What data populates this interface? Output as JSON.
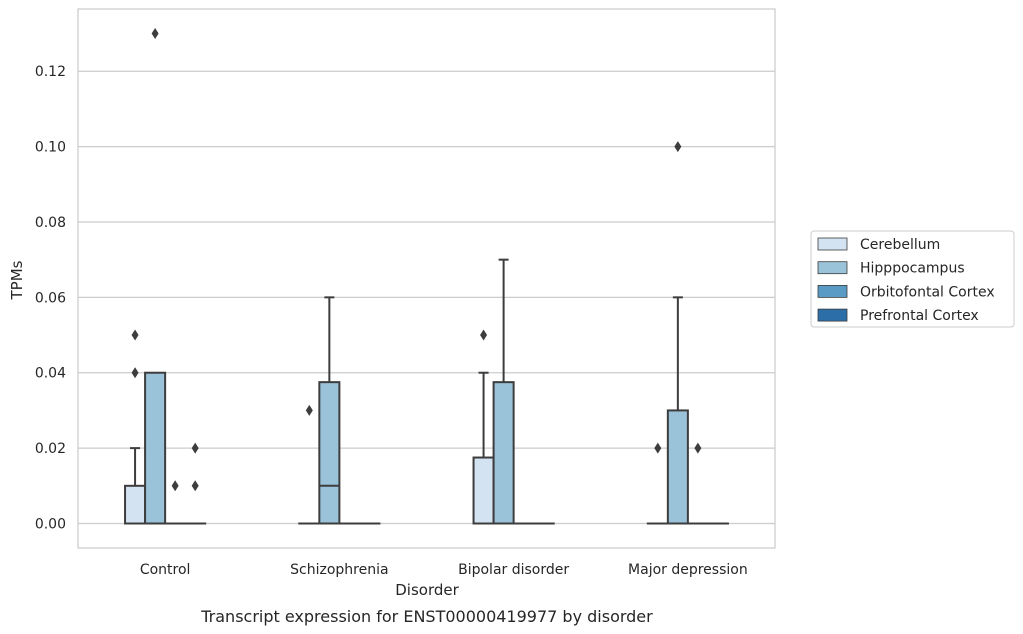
{
  "chart_data": {
    "type": "box",
    "title": "",
    "caption": "Transcript expression for ENST00000419977 by disorder",
    "xlabel": "Disorder",
    "ylabel": "TPMs",
    "ylim": [
      -0.0065,
      0.1365
    ],
    "yticks": [
      "0.00",
      "0.02",
      "0.04",
      "0.06",
      "0.08",
      "0.10",
      "0.12"
    ],
    "grid": "horizontal",
    "legend_position": "right-outside",
    "categories": [
      "Control",
      "Schizophrenia",
      "Bipolar disorder",
      "Major depression"
    ],
    "series": [
      {
        "name": "Cerebellum",
        "color": "#d3e3f2",
        "boxes": [
          {
            "q1": 0,
            "median": 0,
            "q3": 0.01,
            "whisker_low": 0,
            "whisker_high": 0.02,
            "outliers": [
              0.04,
              0.05
            ]
          },
          {
            "q1": 0,
            "median": 0,
            "q3": 0,
            "whisker_low": 0,
            "whisker_high": 0,
            "outliers": [
              0.03
            ]
          },
          {
            "q1": 0,
            "median": 0,
            "q3": 0.0175,
            "whisker_low": 0,
            "whisker_high": 0.04,
            "outliers": [
              0.05
            ]
          },
          {
            "q1": 0,
            "median": 0,
            "q3": 0,
            "whisker_low": 0,
            "whisker_high": 0,
            "outliers": [
              0.02
            ]
          }
        ]
      },
      {
        "name": "Hipppocampus",
        "color": "#9ac2d9",
        "boxes": [
          {
            "q1": 0,
            "median": 0,
            "q3": 0.04,
            "whisker_low": 0,
            "whisker_high": 0.04,
            "outliers": [
              0.13
            ]
          },
          {
            "q1": 0,
            "median": 0.01,
            "q3": 0.0375,
            "whisker_low": 0,
            "whisker_high": 0.06,
            "outliers": []
          },
          {
            "q1": 0,
            "median": 0,
            "q3": 0.0375,
            "whisker_low": 0,
            "whisker_high": 0.07,
            "outliers": []
          },
          {
            "q1": 0,
            "median": 0,
            "q3": 0.03,
            "whisker_low": 0,
            "whisker_high": 0.06,
            "outliers": [
              0.1
            ]
          }
        ]
      },
      {
        "name": "Orbitofontal Cortex",
        "color": "#5a9bc6",
        "boxes": [
          {
            "q1": 0,
            "median": 0,
            "q3": 0,
            "whisker_low": 0,
            "whisker_high": 0,
            "outliers": [
              0.01
            ]
          },
          {
            "q1": 0,
            "median": 0,
            "q3": 0,
            "whisker_low": 0,
            "whisker_high": 0,
            "outliers": []
          },
          {
            "q1": 0,
            "median": 0,
            "q3": 0,
            "whisker_low": 0,
            "whisker_high": 0,
            "outliers": []
          },
          {
            "q1": 0,
            "median": 0,
            "q3": 0,
            "whisker_low": 0,
            "whisker_high": 0,
            "outliers": [
              0.02
            ]
          }
        ]
      },
      {
        "name": "Prefrontal Cortex",
        "color": "#2c6ea8",
        "boxes": [
          {
            "q1": 0,
            "median": 0,
            "q3": 0,
            "whisker_low": 0,
            "whisker_high": 0,
            "outliers": [
              0.01,
              0.02
            ]
          },
          {
            "q1": 0,
            "median": 0,
            "q3": 0,
            "whisker_low": 0,
            "whisker_high": 0,
            "outliers": []
          },
          {
            "q1": 0,
            "median": 0,
            "q3": 0,
            "whisker_low": 0,
            "whisker_high": 0,
            "outliers": []
          },
          {
            "q1": 0,
            "median": 0,
            "q3": 0,
            "whisker_low": 0,
            "whisker_high": 0,
            "outliers": []
          }
        ]
      }
    ]
  }
}
